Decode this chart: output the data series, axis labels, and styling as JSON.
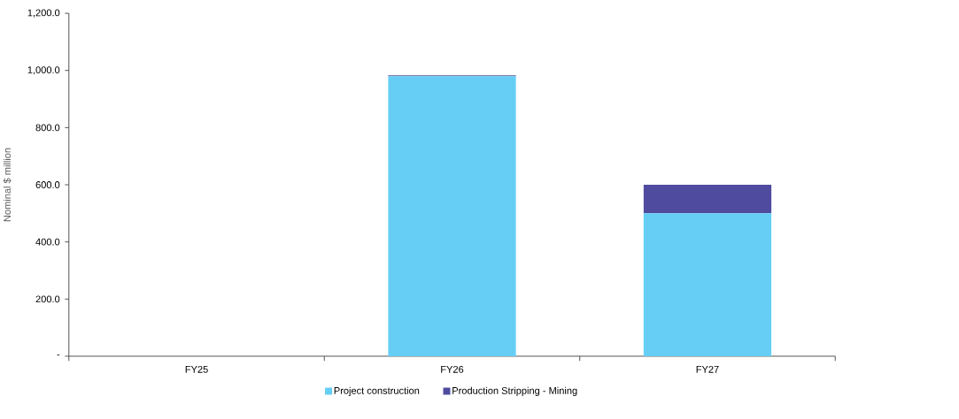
{
  "chart_data": {
    "type": "bar",
    "stacked": true,
    "ylabel": "Nominal $ million",
    "categories": [
      "FY25",
      "FY26",
      "FY27"
    ],
    "series": [
      {
        "name": "Project construction",
        "color": "#66cef5",
        "values": [
          0,
          980,
          500
        ]
      },
      {
        "name": "Production Stripping - Mining",
        "color": "#4f4c9f",
        "values": [
          0,
          3,
          100
        ]
      }
    ],
    "ylim": [
      0,
      1200
    ],
    "yticks": [
      {
        "value": 0,
        "label": "-"
      },
      {
        "value": 200,
        "label": "200.0"
      },
      {
        "value": 400,
        "label": "400.0"
      },
      {
        "value": 600,
        "label": "600.0"
      },
      {
        "value": 800,
        "label": "800.0"
      },
      {
        "value": 1000,
        "label": "1,000.0"
      },
      {
        "value": 1200,
        "label": "1,200.0"
      }
    ],
    "grid": false,
    "legend": "bottom"
  }
}
